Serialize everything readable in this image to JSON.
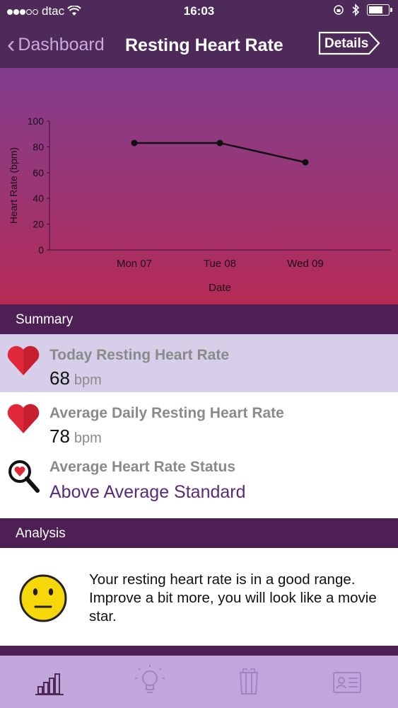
{
  "status_bar": {
    "carrier": "dtac",
    "time": "16:03"
  },
  "nav": {
    "back_label": "Dashboard",
    "title": "Resting Heart Rate",
    "details_label": "Details"
  },
  "chart_data": {
    "type": "line",
    "ylabel": "Heart Rate (bpm)",
    "xlabel": "Date",
    "categories": [
      "Mon 07",
      "Tue 08",
      "Wed 09"
    ],
    "values": [
      83,
      83,
      68
    ],
    "ylim": [
      0,
      100
    ],
    "yticks": [
      "0",
      "20",
      "40",
      "60",
      "80",
      "100"
    ],
    "grid": false,
    "line_color": "#111111"
  },
  "summary": {
    "header": "Summary",
    "today": {
      "label": "Today Resting Heart Rate",
      "value": "68",
      "unit": "bpm"
    },
    "average": {
      "label": "Average Daily Resting Heart Rate",
      "value": "78",
      "unit": "bpm"
    },
    "status": {
      "label": "Average Heart Rate Status",
      "value": "Above Average Standard"
    }
  },
  "analysis": {
    "header": "Analysis",
    "text": "Your resting heart rate is in a good range. Improve a bit more, you will look like a movie star."
  },
  "tabs": [
    {
      "icon": "bar-chart-icon"
    },
    {
      "icon": "lightbulb-icon"
    },
    {
      "icon": "gift-icon"
    },
    {
      "icon": "profile-card-icon"
    }
  ],
  "colors": {
    "header": "#4d2a58",
    "section": "#4d1f55",
    "highlight_row": "#d7cfe9",
    "tabbar": "#c0a6db",
    "heart": "#e0283a"
  }
}
